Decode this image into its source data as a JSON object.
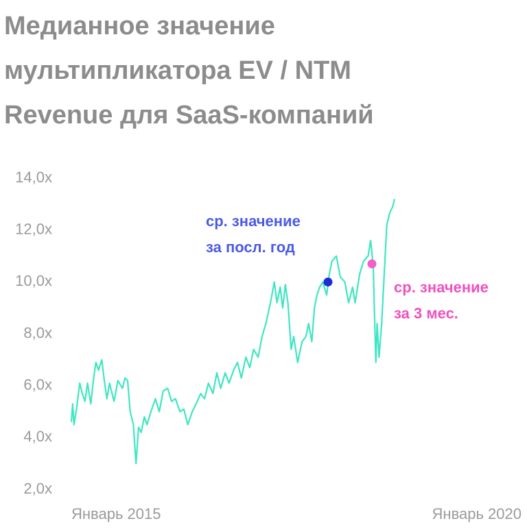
{
  "chart_data": {
    "type": "line",
    "title": "Медианное значение мультипликатора EV / NTM Revenue для SaaS-компаний",
    "color": "#3ee6c2",
    "x": [
      2015.0,
      2015.02,
      2015.04,
      2015.08,
      2015.13,
      2015.17,
      2015.21,
      2015.25,
      2015.3,
      2015.34,
      2015.38,
      2015.42,
      2015.47,
      2015.51,
      2015.55,
      2015.59,
      2015.66,
      2015.72,
      2015.79,
      2015.83,
      2015.87,
      2015.91,
      2015.96,
      2016.0,
      2016.04,
      2016.08,
      2016.13,
      2016.17,
      2016.23,
      2016.3,
      2016.36,
      2016.42,
      2016.49,
      2016.55,
      2016.61,
      2016.68,
      2016.74,
      2016.8,
      2016.87,
      2016.93,
      2017.0,
      2017.06,
      2017.12,
      2017.19,
      2017.25,
      2017.31,
      2017.38,
      2017.44,
      2017.51,
      2017.57,
      2017.63,
      2017.7,
      2017.76,
      2017.82,
      2017.89,
      2017.95,
      2018.01,
      2018.08,
      2018.14,
      2018.18,
      2018.23,
      2018.27,
      2018.31,
      2018.35,
      2018.4,
      2018.44,
      2018.5,
      2018.57,
      2018.63,
      2018.67,
      2018.72,
      2018.76,
      2018.8,
      2018.84,
      2018.89,
      2018.95,
      2018.99,
      2019.03,
      2019.1,
      2019.16,
      2019.23,
      2019.29,
      2019.35,
      2019.39,
      2019.46,
      2019.52,
      2019.59,
      2019.63,
      2019.67,
      2019.71,
      2019.73,
      2019.76,
      2019.8,
      2019.84,
      2019.88,
      2019.93,
      2019.97,
      2020.0
    ],
    "values": [
      4.6,
      5.3,
      4.5,
      5.1,
      6.1,
      5.7,
      5.4,
      6.1,
      5.3,
      6.2,
      6.9,
      6.6,
      7.0,
      6.2,
      5.5,
      6.1,
      5.4,
      6.2,
      5.9,
      6.3,
      6.2,
      5.0,
      4.5,
      3.0,
      4.4,
      4.2,
      4.8,
      4.5,
      5.0,
      5.5,
      5.0,
      5.8,
      5.9,
      5.4,
      5.5,
      5.0,
      5.1,
      4.5,
      5.0,
      5.3,
      5.7,
      5.5,
      6.1,
      5.7,
      6.5,
      5.9,
      6.5,
      6.1,
      6.6,
      6.9,
      6.3,
      7.1,
      6.7,
      7.4,
      7.1,
      7.9,
      8.4,
      9.2,
      10.0,
      9.2,
      9.8,
      9.0,
      9.9,
      9.2,
      7.4,
      7.9,
      6.9,
      7.7,
      7.9,
      8.4,
      7.7,
      9.0,
      9.5,
      9.8,
      10.0,
      9.5,
      10.3,
      10.8,
      11.0,
      10.2,
      10.0,
      9.2,
      9.8,
      9.2,
      10.3,
      10.8,
      11.0,
      11.6,
      10.6,
      6.9,
      8.4,
      7.1,
      8.4,
      10.3,
      12.2,
      12.7,
      12.9,
      13.2
    ],
    "xlim": [
      2015,
      2020
    ],
    "xticks": [
      {
        "value": 2015,
        "label": "Январь 2015"
      },
      {
        "value": 2020,
        "label": "Январь 2020"
      }
    ],
    "ylim": [
      2,
      14
    ],
    "yticks": [
      {
        "value": 2,
        "label": "2,0x"
      },
      {
        "value": 4,
        "label": "4,0x"
      },
      {
        "value": 6,
        "label": "6,0x"
      },
      {
        "value": 8,
        "label": "8,0x"
      },
      {
        "value": 10,
        "label": "10,0x"
      },
      {
        "value": 12,
        "label": "12,0x"
      },
      {
        "value": 14,
        "label": "14,0x"
      }
    ],
    "annotations": [
      {
        "lines": [
          "ср. значение",
          "за посл. год"
        ],
        "x": 2018.97,
        "y": 10.0,
        "color": "#1f2bd6",
        "text_color": "#4a5ae6"
      },
      {
        "lines": [
          "ср. значение",
          "за 3 мес."
        ],
        "x": 2019.65,
        "y": 10.7,
        "color": "#f25fc8",
        "text_color": "#f050c0"
      }
    ]
  }
}
